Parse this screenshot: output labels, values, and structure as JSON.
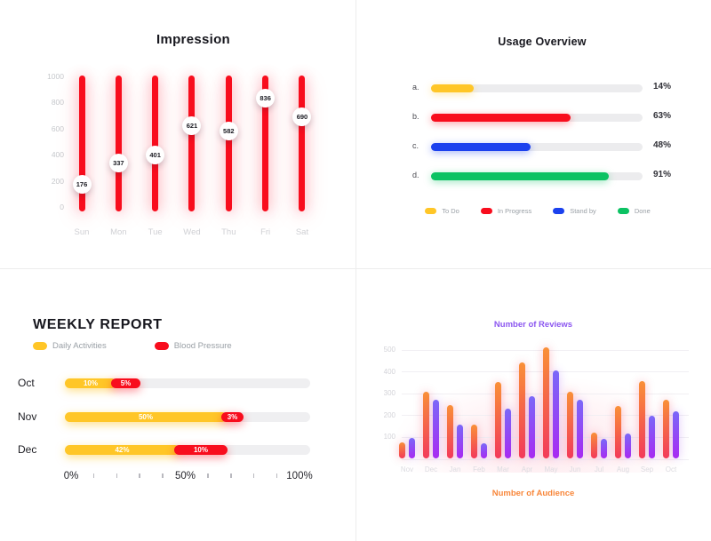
{
  "colors": {
    "red": "#F80D1D",
    "yellow": "#FFC627",
    "blue": "#1B41EE",
    "green": "#0CC263",
    "title_dark": "#17171E",
    "legend_gray": "#9AA0A6",
    "axis_light_gray": "#CFD0D4",
    "reviews_purple": "#8C57F0",
    "audience_orange": "#F8873B"
  },
  "chart_data": [
    {
      "id": "impression",
      "type": "bar",
      "title": "Impression",
      "categories": [
        "Sun",
        "Mon",
        "Tue",
        "Wed",
        "Thu",
        "Fri",
        "Sat"
      ],
      "values": [
        176,
        337,
        401,
        621,
        582,
        836,
        690
      ],
      "value_labels": [
        "176",
        "337",
        "401",
        "621",
        "582",
        "836",
        "690"
      ],
      "yticks": [
        1000,
        800,
        600,
        400,
        200,
        0
      ],
      "ylim": [
        0,
        1000
      ],
      "bar_color": "#F80D1D",
      "style": "vertical-slider-with-knob",
      "grid": false
    },
    {
      "id": "usage-overview",
      "type": "bar",
      "title": "Usage Overview",
      "orientation": "horizontal",
      "categories": [
        "a.",
        "b.",
        "c.",
        "d."
      ],
      "values": [
        14,
        63,
        48,
        91
      ],
      "value_labels": [
        "14%",
        "63%",
        "48%",
        "91%"
      ],
      "display_percents": [
        20,
        66,
        47,
        84
      ],
      "bar_colors": [
        "#FFC627",
        "#F80D1D",
        "#1B41EE",
        "#0CC263"
      ],
      "xlim": [
        0,
        100
      ],
      "grid": false,
      "legend_position": "bottom",
      "legend": [
        {
          "label": "To Do",
          "color": "#FFC627"
        },
        {
          "label": "In Progress",
          "color": "#F80D1D"
        },
        {
          "label": "Stand by",
          "color": "#1B41EE"
        },
        {
          "label": "Done",
          "color": "#0CC263"
        }
      ]
    },
    {
      "id": "weekly-report",
      "type": "bar",
      "title": "WEEKLY REPORT",
      "orientation": "horizontal-stacked",
      "categories": [
        "Oct",
        "Nov",
        "Dec"
      ],
      "series": [
        {
          "name": "Daily Activities",
          "color": "#FFC627",
          "values": [
            10,
            50,
            42
          ],
          "value_labels": [
            "10%",
            "50%",
            "42%"
          ],
          "display_widths": [
            58,
            182,
            129
          ]
        },
        {
          "name": "Blood Pressure",
          "color": "#F80D1D",
          "values": [
            5,
            3,
            10
          ],
          "value_labels": [
            "5%",
            "3%",
            "10%"
          ],
          "display_widths": [
            33,
            25,
            60
          ]
        }
      ],
      "xticks": [
        "0%",
        "50%",
        "100%"
      ],
      "minor_ticks_between": 4,
      "xlim": [
        0,
        100
      ],
      "grid": false,
      "legend_position": "top-left"
    },
    {
      "id": "reviews-audience",
      "type": "bar",
      "title_top": "Number of Reviews",
      "title_top_color": "#8C57F0",
      "title_bottom": "Number of Audience",
      "title_bottom_color": "#F8873B",
      "orientation": "vertical-grouped",
      "categories": [
        "Nov",
        "Dec",
        "Jan",
        "Feb",
        "Mar",
        "Apr",
        "May",
        "Jun",
        "Jul",
        "Aug",
        "Sep",
        "Oct"
      ],
      "series": [
        {
          "name": "Number of Audience",
          "values": [
            75,
            305,
            245,
            155,
            350,
            440,
            510,
            305,
            120,
            240,
            355,
            270
          ],
          "gradient_top": "#F99038",
          "gradient_bottom": "#F43B58"
        },
        {
          "name": "Number of Reviews",
          "values": [
            95,
            270,
            155,
            70,
            230,
            285,
            405,
            270,
            90,
            115,
            195,
            215
          ],
          "gradient_top": "#7A68F8",
          "gradient_bottom": "#A82BF2"
        }
      ],
      "yticks": [
        500,
        400,
        300,
        200,
        100
      ],
      "ylim": [
        0,
        500
      ],
      "grid": true
    }
  ]
}
